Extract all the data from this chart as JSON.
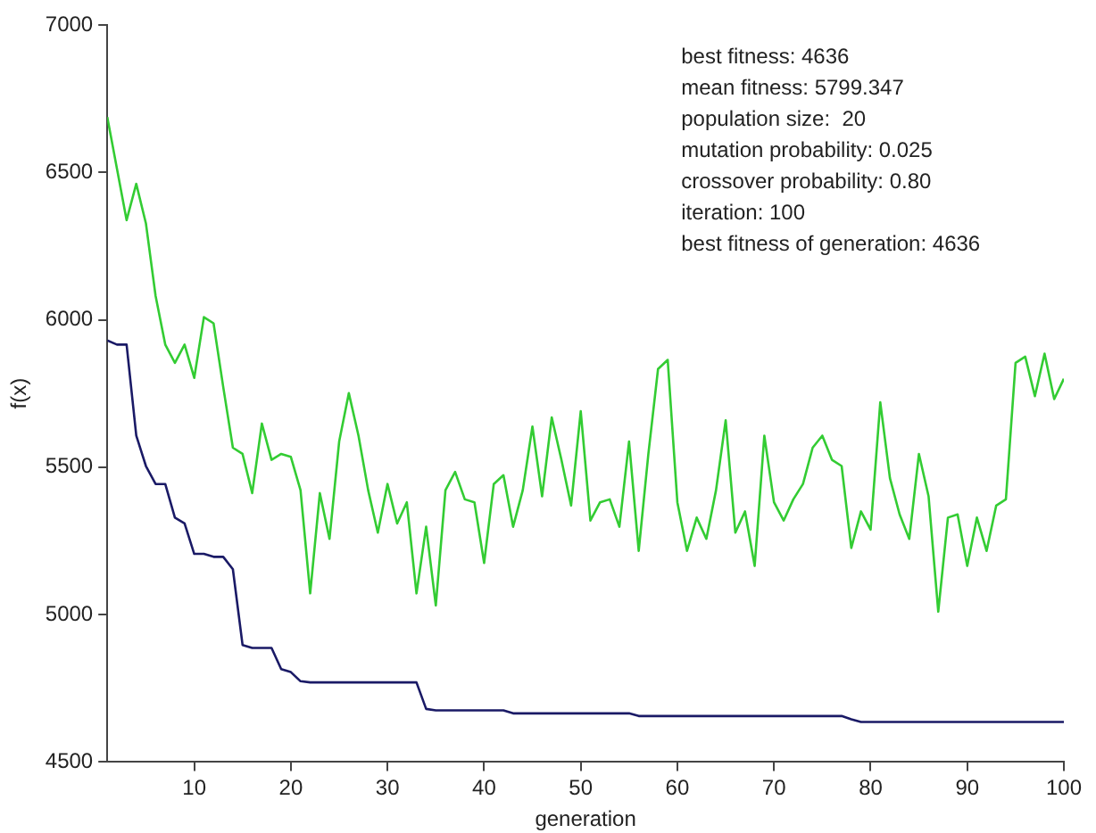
{
  "chart_data": {
    "type": "line",
    "xlabel": "generation",
    "ylabel": "f(x)",
    "x": [
      1,
      2,
      3,
      4,
      5,
      6,
      7,
      8,
      9,
      10,
      11,
      12,
      13,
      14,
      15,
      16,
      17,
      18,
      19,
      20,
      21,
      22,
      23,
      24,
      25,
      26,
      27,
      28,
      29,
      30,
      31,
      32,
      33,
      34,
      35,
      36,
      37,
      38,
      39,
      40,
      41,
      42,
      43,
      44,
      45,
      46,
      47,
      48,
      49,
      50,
      51,
      52,
      53,
      54,
      55,
      56,
      57,
      58,
      59,
      60,
      61,
      62,
      63,
      64,
      65,
      66,
      67,
      68,
      69,
      70,
      71,
      72,
      73,
      74,
      75,
      76,
      77,
      78,
      79,
      80,
      81,
      82,
      83,
      84,
      85,
      86,
      87,
      88,
      89,
      90,
      91,
      92,
      93,
      94,
      95,
      96,
      97,
      98,
      99,
      100
    ],
    "series": [
      {
        "color": "#33cc33",
        "values": [
          6688,
          6513,
          6338,
          6461,
          6327,
          6081,
          5916,
          5854,
          5916,
          5803,
          6009,
          5988,
          5772,
          5566,
          5545,
          5412,
          5648,
          5525,
          5545,
          5535,
          5422,
          5072,
          5412,
          5257,
          5587,
          5751,
          5607,
          5422,
          5278,
          5443,
          5309,
          5381,
          5072,
          5298,
          5031,
          5422,
          5484,
          5391,
          5381,
          5175,
          5443,
          5473,
          5298,
          5422,
          5638,
          5401,
          5669,
          5525,
          5370,
          5690,
          5319,
          5381,
          5391,
          5298,
          5587,
          5216,
          5545,
          5833,
          5864,
          5381,
          5216,
          5329,
          5257,
          5422,
          5659,
          5278,
          5350,
          5165,
          5607,
          5381,
          5319,
          5391,
          5443,
          5566,
          5607,
          5525,
          5504,
          5226,
          5350,
          5288,
          5720,
          5463,
          5340,
          5257,
          5545,
          5401,
          5010,
          5329,
          5340,
          5165,
          5329,
          5216,
          5370,
          5391,
          5854,
          5875,
          5741,
          5885,
          5731,
          5800
        ]
      },
      {
        "color": "#1a1a66",
        "values": [
          5930,
          5916,
          5916,
          5607,
          5504,
          5443,
          5443,
          5329,
          5309,
          5206,
          5206,
          5196,
          5196,
          5154,
          4897,
          4887,
          4887,
          4887,
          4815,
          4805,
          4774,
          4770,
          4770,
          4770,
          4770,
          4770,
          4770,
          4770,
          4770,
          4770,
          4770,
          4770,
          4770,
          4680,
          4675,
          4675,
          4675,
          4675,
          4675,
          4675,
          4675,
          4675,
          4665,
          4665,
          4665,
          4665,
          4665,
          4665,
          4665,
          4665,
          4665,
          4665,
          4665,
          4665,
          4665,
          4656,
          4656,
          4656,
          4656,
          4656,
          4656,
          4656,
          4656,
          4656,
          4656,
          4656,
          4656,
          4656,
          4656,
          4656,
          4656,
          4656,
          4656,
          4656,
          4656,
          4656,
          4656,
          4645,
          4636,
          4636,
          4636,
          4636,
          4636,
          4636,
          4636,
          4636,
          4636,
          4636,
          4636,
          4636,
          4636,
          4636,
          4636,
          4636,
          4636,
          4636,
          4636,
          4636,
          4636,
          4636
        ]
      }
    ],
    "xlim": [
      1,
      100
    ],
    "xticks": [
      10,
      20,
      30,
      40,
      50,
      60,
      70,
      80,
      90,
      100
    ],
    "ylim": [
      4500,
      7000
    ],
    "yticks": [
      4500,
      5000,
      5500,
      6000,
      6500,
      7000
    ],
    "grid": false,
    "legend": false,
    "marker": "none",
    "line_style": "solid",
    "annotations": [
      "best fitness: 4636",
      "mean fitness: 5799.347",
      "population size:  20",
      "mutation probability: 0.025",
      "crossover probability: 0.80",
      "iteration: 100",
      "best fitness of generation: 4636"
    ]
  }
}
